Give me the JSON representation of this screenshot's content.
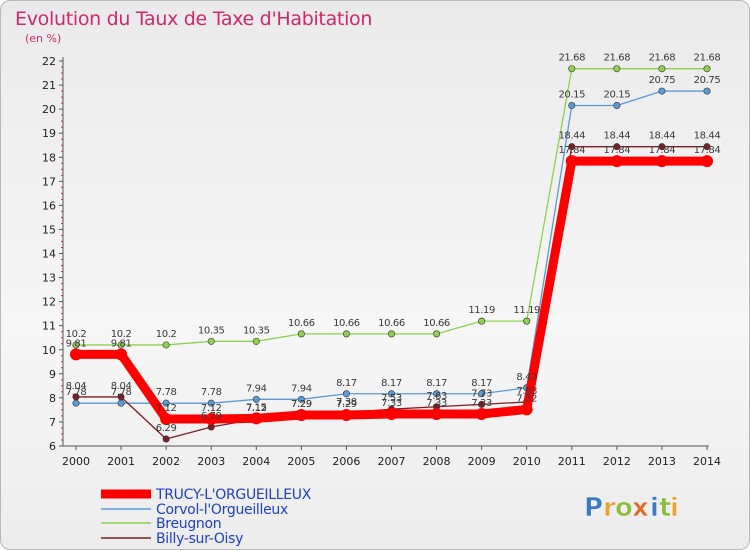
{
  "chart_data": {
    "type": "line",
    "title": "Evolution du Taux de Taxe d'Habitation",
    "subtitle": "(en %)",
    "xlabel": "",
    "ylabel": "(en %)",
    "x": [
      "2000",
      "2001",
      "2002",
      "2003",
      "2004",
      "2005",
      "2006",
      "2007",
      "2008",
      "2009",
      "2010",
      "2011",
      "2012",
      "2013",
      "2014"
    ],
    "ylim": [
      6,
      22
    ],
    "yticks": [
      "6",
      "7",
      "8",
      "9",
      "10",
      "11",
      "12",
      "13",
      "14",
      "15",
      "16",
      "17",
      "18",
      "19",
      "20",
      "21",
      "22"
    ],
    "grid": false,
    "legend_position": "bottom-left",
    "series": [
      {
        "name": "TRUCY-L'ORGUEILLEUX",
        "color": "#ff0000",
        "width": 9,
        "marker": 6,
        "values": [
          9.81,
          9.81,
          7.12,
          7.12,
          7.15,
          7.29,
          7.29,
          7.33,
          7.33,
          7.33,
          7.52,
          17.84,
          17.84,
          17.84,
          17.84
        ],
        "labels": [
          "9.81",
          "9.81",
          "7.12",
          "7.12",
          "7.15",
          "7.29",
          "7.29",
          "7.33",
          "7.33",
          "7.33",
          "7.52",
          "17.84",
          "17.84",
          "17.84",
          "17.84"
        ]
      },
      {
        "name": "Corvol-l'Orgueilleux",
        "color": "#5b9bd5",
        "width": 1.3,
        "marker": 3.2,
        "values": [
          7.78,
          7.78,
          7.78,
          7.78,
          7.94,
          7.94,
          8.17,
          8.17,
          8.17,
          8.17,
          8.42,
          20.15,
          20.15,
          20.75,
          20.75
        ],
        "labels": [
          "7.78",
          "7.78",
          "7.78",
          "7.78",
          "7.94",
          "7.94",
          "8.17",
          "8.17",
          "8.17",
          "8.17",
          "8.42",
          "20.15",
          "20.15",
          "20.75",
          "20.75"
        ]
      },
      {
        "name": "Breugnon",
        "color": "#8fd14f",
        "width": 1.3,
        "marker": 3.2,
        "values": [
          10.2,
          10.2,
          10.2,
          10.35,
          10.35,
          10.66,
          10.66,
          10.66,
          10.66,
          11.19,
          11.19,
          21.68,
          21.68,
          21.68,
          21.68
        ],
        "labels": [
          "10.2",
          "10.2",
          "10.2",
          "10.35",
          "10.35",
          "10.66",
          "10.66",
          "10.66",
          "10.66",
          "11.19",
          "11.19",
          "21.68",
          "21.68",
          "21.68",
          "21.68"
        ]
      },
      {
        "name": "Billy-sur-Oisy",
        "color": "#7a1e28",
        "width": 1.3,
        "marker": 3.2,
        "values": [
          8.04,
          8.04,
          6.29,
          6.79,
          7.12,
          7.29,
          7.38,
          7.53,
          7.63,
          7.73,
          7.83,
          18.44,
          18.44,
          18.44,
          18.44
        ],
        "labels": [
          "8.04",
          "8.04",
          "6.29",
          "6.79",
          "7.12",
          "7.29",
          "7.38",
          "7.53",
          "7.63",
          "7.73",
          "7.83",
          "18.44",
          "18.44",
          "18.44",
          "18.44"
        ]
      }
    ]
  },
  "brand": {
    "letters": [
      "P",
      "r",
      "o",
      "x",
      "i",
      "t",
      "i"
    ],
    "colors": [
      "#3a78c8",
      "#e8a23a",
      "#8cbd3f",
      "#e06a2a",
      "#3a78c8",
      "#8cbd3f",
      "#e8a23a"
    ]
  },
  "colors": {
    "axis": "#555555",
    "title": "#cc2a6a",
    "legend_text": "#2040c0"
  }
}
